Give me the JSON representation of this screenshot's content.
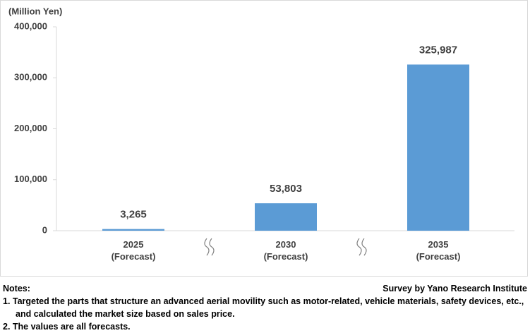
{
  "chart_data": {
    "type": "bar",
    "y_unit": "(Million Yen)",
    "categories": [
      "2025 (Forecast)",
      "2030 (Forecast)",
      "2035 (Forecast)"
    ],
    "values": [
      3265,
      53803,
      325987
    ],
    "value_labels": [
      "3,265",
      "53,803",
      "325,987"
    ],
    "color": "#5b9bd5",
    "ylim": [
      0,
      400000
    ],
    "yticks": [
      0,
      {
        "value": 100000,
        "label": "100,000"
      },
      {
        "value": 200000,
        "label": "200,000"
      },
      {
        "value": 300000,
        "label": "300,000"
      },
      {
        "value": 400000,
        "label": "400,000"
      }
    ],
    "grid": false
  },
  "notes": {
    "heading": "Notes:",
    "items": [
      "1. Targeted the parts that structure an advanced aerial movility such as motor-related, vehicle materials, safety devices, etc., and calculated the market size based on sales price.",
      "2. The values are all forecasts."
    ],
    "source": "Survey by Yano Research Institute"
  }
}
